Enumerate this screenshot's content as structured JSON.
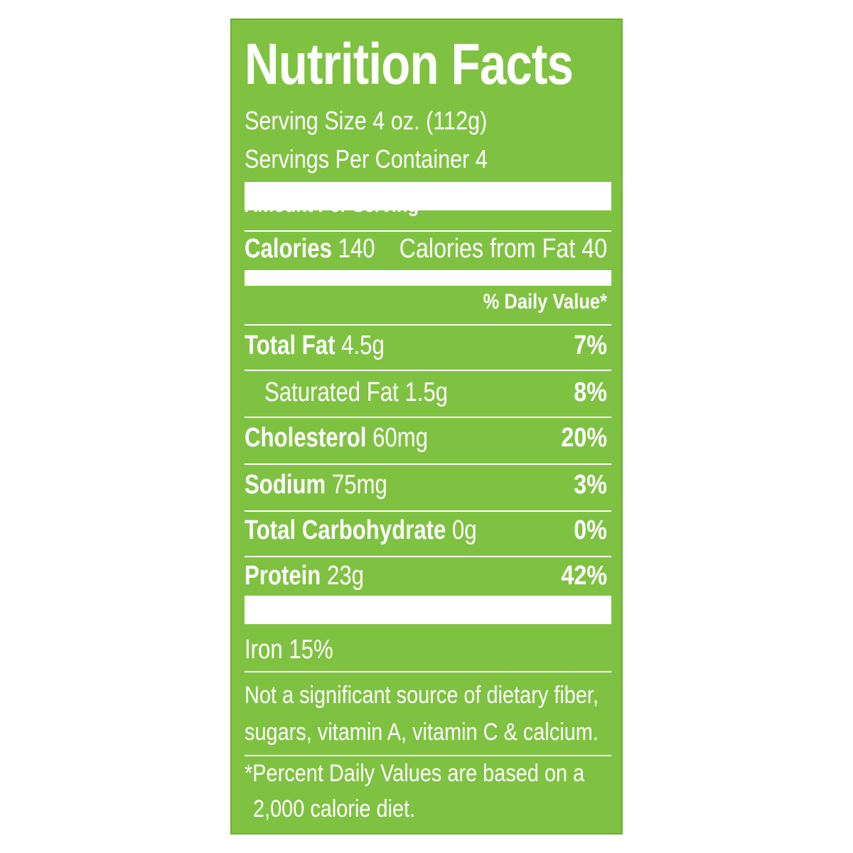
{
  "label": {
    "title": "Nutrition Facts",
    "serving_size": "Serving  Size 4 oz. (112g)",
    "servings_per_container": "Servings Per Container 4",
    "amount_per_serving": "Amount Per Serving",
    "calories_label": "Calories",
    "calories_value": " 140",
    "calories_from_fat": "Calories from Fat 40",
    "daily_value_header": "% Daily Value*",
    "nutrients": [
      {
        "name": "Total Fat",
        "amount": " 4.5g",
        "dv": "7%"
      },
      {
        "name": "Saturated Fat 1.5g",
        "amount": "",
        "dv": "8%"
      },
      {
        "name": "Cholesterol",
        "amount": " 60mg",
        "dv": "20%"
      },
      {
        "name": "Sodium",
        "amount": " 75mg",
        "dv": "3%"
      },
      {
        "name": "Total Carbohydrate",
        "amount": " 0g",
        "dv": "0%"
      },
      {
        "name": "Protein",
        "amount": " 23g",
        "dv": "42%"
      }
    ],
    "iron": "Iron 15%",
    "note_1_line_1": "Not a significant source of dietary fiber,",
    "note_1_line_2": "sugars, vitamin A, vitamin C & calcium.",
    "note_2_line_1": "*Percent Daily Values are based on a",
    "note_2_line_2": "2,000 calorie diet.",
    "colors": {
      "background": "#7fc242",
      "text": "#ffffff"
    }
  }
}
